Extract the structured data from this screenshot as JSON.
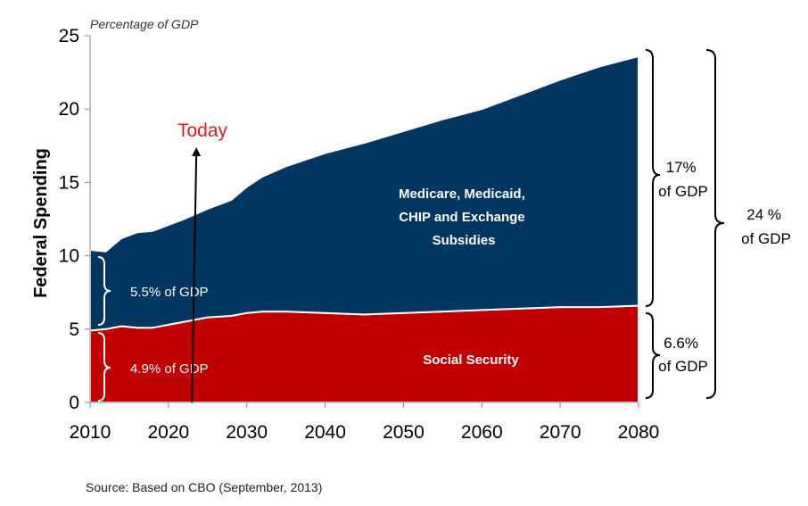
{
  "chart_data": {
    "type": "area",
    "unit_label": "Percentage of GDP",
    "ylabel": "Federal Spending",
    "xlabel": "",
    "xlim": [
      2010,
      2080
    ],
    "ylim": [
      0,
      25
    ],
    "x_ticks": [
      2010,
      2020,
      2030,
      2040,
      2050,
      2060,
      2070,
      2080
    ],
    "y_ticks": [
      0,
      5,
      10,
      15,
      20,
      25
    ],
    "x": [
      2010,
      2012,
      2014,
      2016,
      2018,
      2020,
      2022,
      2025,
      2028,
      2030,
      2032,
      2035,
      2040,
      2045,
      2050,
      2055,
      2060,
      2065,
      2070,
      2075,
      2080
    ],
    "series": [
      {
        "name": "Social Security",
        "color": "#c00000",
        "values": [
          4.9,
          5.0,
          5.2,
          5.1,
          5.1,
          5.3,
          5.5,
          5.8,
          5.9,
          6.1,
          6.2,
          6.2,
          6.1,
          6.0,
          6.1,
          6.2,
          6.3,
          6.4,
          6.5,
          6.5,
          6.6
        ]
      },
      {
        "name": "Medicare, Medicaid, CHIP and Exchange Subsidies",
        "color": "#003660",
        "values": [
          5.5,
          5.3,
          6.0,
          6.5,
          6.6,
          6.8,
          7.0,
          7.4,
          7.9,
          8.6,
          9.2,
          9.9,
          10.9,
          11.7,
          12.4,
          13.1,
          13.7,
          14.6,
          15.5,
          16.4,
          17.0
        ]
      }
    ],
    "annotations": {
      "today": {
        "label": "Today",
        "x": 2023
      },
      "area_labels": [
        "Medicare, Medicaid,",
        "CHIP and Exchange",
        "Subsidies"
      ],
      "social_security_label": "Social Security",
      "start_health": "5.5% of GDP",
      "start_ss": "4.9% of GDP",
      "end_health": [
        "17%",
        "of GDP"
      ],
      "end_ss": [
        "6.6%",
        "of GDP"
      ],
      "end_total": [
        "24 %",
        "of GDP"
      ]
    },
    "source": "Source: Based on CBO (September, 2013)",
    "grid": false,
    "legend": "none"
  }
}
